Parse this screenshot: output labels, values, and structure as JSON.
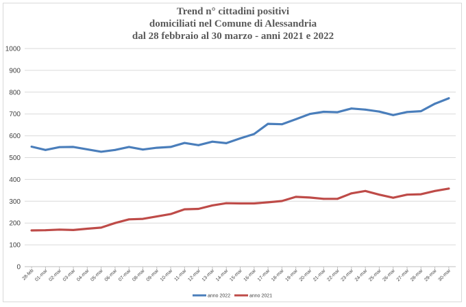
{
  "chart_data": {
    "type": "line",
    "title_lines": [
      "Trend n° cittadini positivi",
      "domiciliati nel Comune di Alessandria",
      "dal 28 febbraio al 30 marzo - anni 2021 e 2022"
    ],
    "xlabel": "",
    "ylabel": "",
    "ylim": [
      0,
      1000
    ],
    "yticks": [
      0,
      100,
      200,
      300,
      400,
      500,
      600,
      700,
      800,
      900,
      1000
    ],
    "grid": true,
    "legend_position": "bottom",
    "categories": [
      "28-feb",
      "01-mar",
      "02-mar",
      "03-mar",
      "04-mar",
      "05-mar",
      "06-mar",
      "07-mar",
      "08-mar",
      "09-mar",
      "10-mar",
      "11-mar",
      "12-mar",
      "13-mar",
      "14-mar",
      "15-mar",
      "16-mar",
      "17-mar",
      "18-mar",
      "19-mar",
      "20-mar",
      "21-mar",
      "22-mar",
      "23-mar",
      "24-mar",
      "25-mar",
      "26-mar",
      "27-mar",
      "28-mar",
      "29-mar",
      "30-mar"
    ],
    "series": [
      {
        "name": "anno 2022",
        "color": "#4a7ebb",
        "values": [
          550,
          535,
          548,
          549,
          538,
          527,
          535,
          549,
          537,
          545,
          549,
          567,
          557,
          573,
          566,
          588,
          608,
          655,
          653,
          676,
          700,
          710,
          708,
          725,
          720,
          711,
          695,
          709,
          713,
          747,
          772
        ]
      },
      {
        "name": "anno 2021",
        "color": "#be4b48",
        "values": [
          166,
          167,
          170,
          168,
          174,
          179,
          200,
          217,
          219,
          230,
          241,
          263,
          265,
          281,
          291,
          290,
          290,
          295,
          301,
          320,
          317,
          311,
          311,
          336,
          347,
          330,
          316,
          330,
          332,
          347,
          358
        ]
      }
    ]
  }
}
